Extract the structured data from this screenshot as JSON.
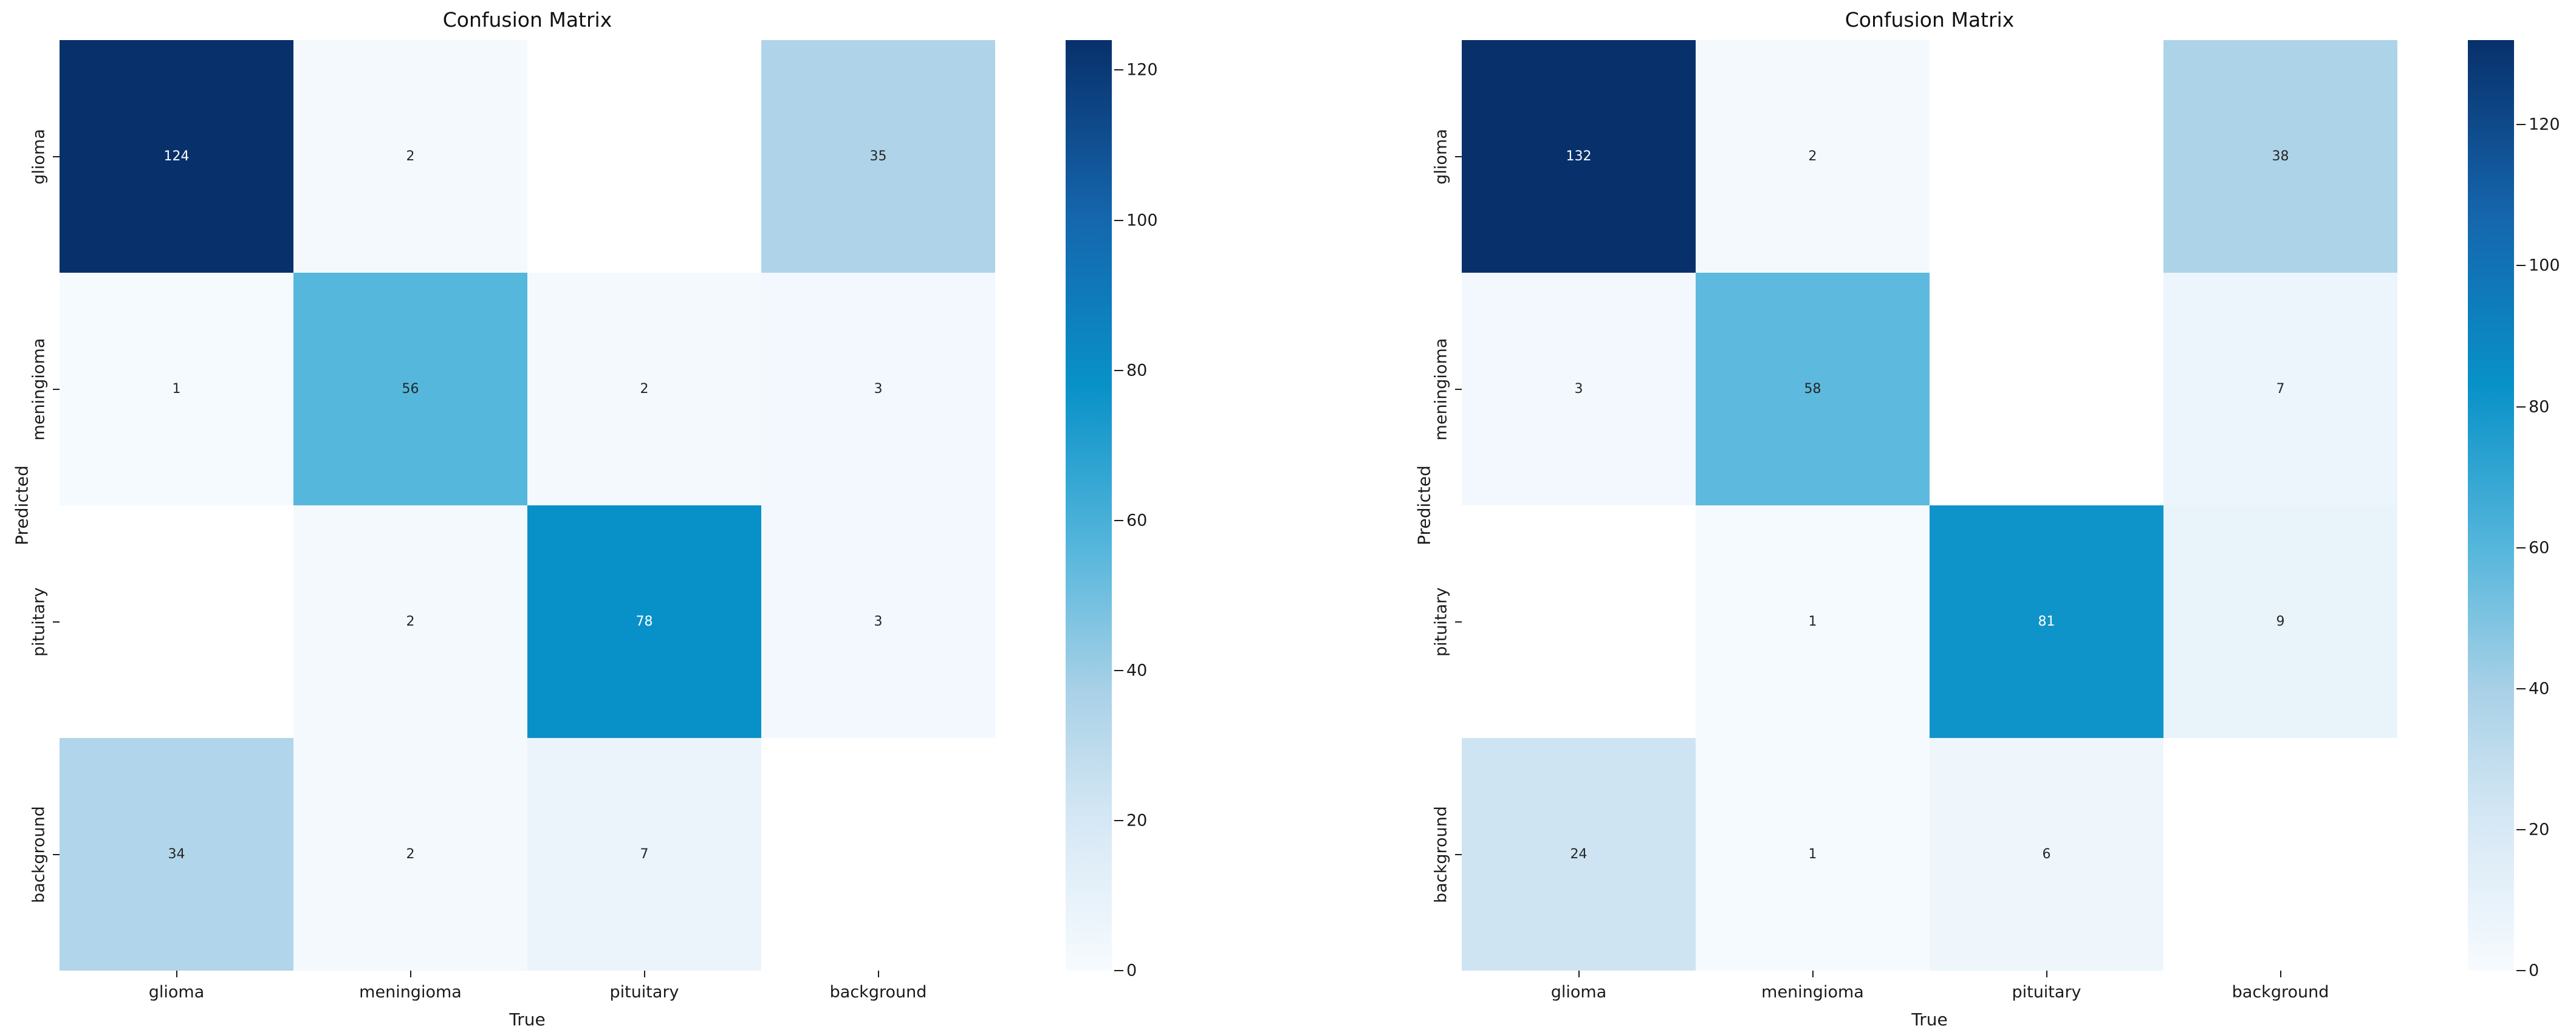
{
  "figure_background": "#ffffff",
  "style": {
    "colormap_stops": [
      {
        "t": 0.0,
        "color": "#f7fbfe"
      },
      {
        "t": 0.16,
        "color": "#d6e8f5"
      },
      {
        "t": 0.3,
        "color": "#a9d1e7"
      },
      {
        "t": 0.45,
        "color": "#57b7dc"
      },
      {
        "t": 0.63,
        "color": "#0891c8"
      },
      {
        "t": 0.81,
        "color": "#1566ad"
      },
      {
        "t": 1.0,
        "color": "#08306b"
      }
    ],
    "masked_cell_color": "#ffffff",
    "annotation_dark_text": "#262626",
    "annotation_light_text": "#ffffff",
    "tick_color": "#1a1a1a"
  },
  "chart_data": [
    {
      "type": "heatmap",
      "title": "Confusion Matrix",
      "xlabel": "True",
      "ylabel": "Predicted",
      "x_categories": [
        "glioma",
        "meningioma",
        "pituitary",
        "background"
      ],
      "y_categories": [
        "glioma",
        "meningioma",
        "pituitary",
        "background"
      ],
      "values": [
        [
          124,
          2,
          null,
          35
        ],
        [
          1,
          56,
          2,
          3
        ],
        [
          null,
          2,
          78,
          3
        ],
        [
          34,
          2,
          7,
          null
        ]
      ],
      "vmin": 0,
      "vmax": 124,
      "colorbar_ticks": [
        0,
        20,
        40,
        60,
        80,
        100,
        120
      ],
      "grid": false,
      "legend_position": "right-colorbar"
    },
    {
      "type": "heatmap",
      "title": "Confusion Matrix",
      "xlabel": "True",
      "ylabel": "Predicted",
      "x_categories": [
        "glioma",
        "meningioma",
        "pituitary",
        "background"
      ],
      "y_categories": [
        "glioma",
        "meningioma",
        "pituitary",
        "background"
      ],
      "values": [
        [
          132,
          2,
          null,
          38
        ],
        [
          3,
          58,
          null,
          7
        ],
        [
          null,
          1,
          81,
          9
        ],
        [
          24,
          1,
          6,
          null
        ]
      ],
      "vmin": 0,
      "vmax": 132,
      "colorbar_ticks": [
        0,
        20,
        40,
        60,
        80,
        100,
        120
      ],
      "grid": false,
      "legend_position": "right-colorbar"
    }
  ]
}
